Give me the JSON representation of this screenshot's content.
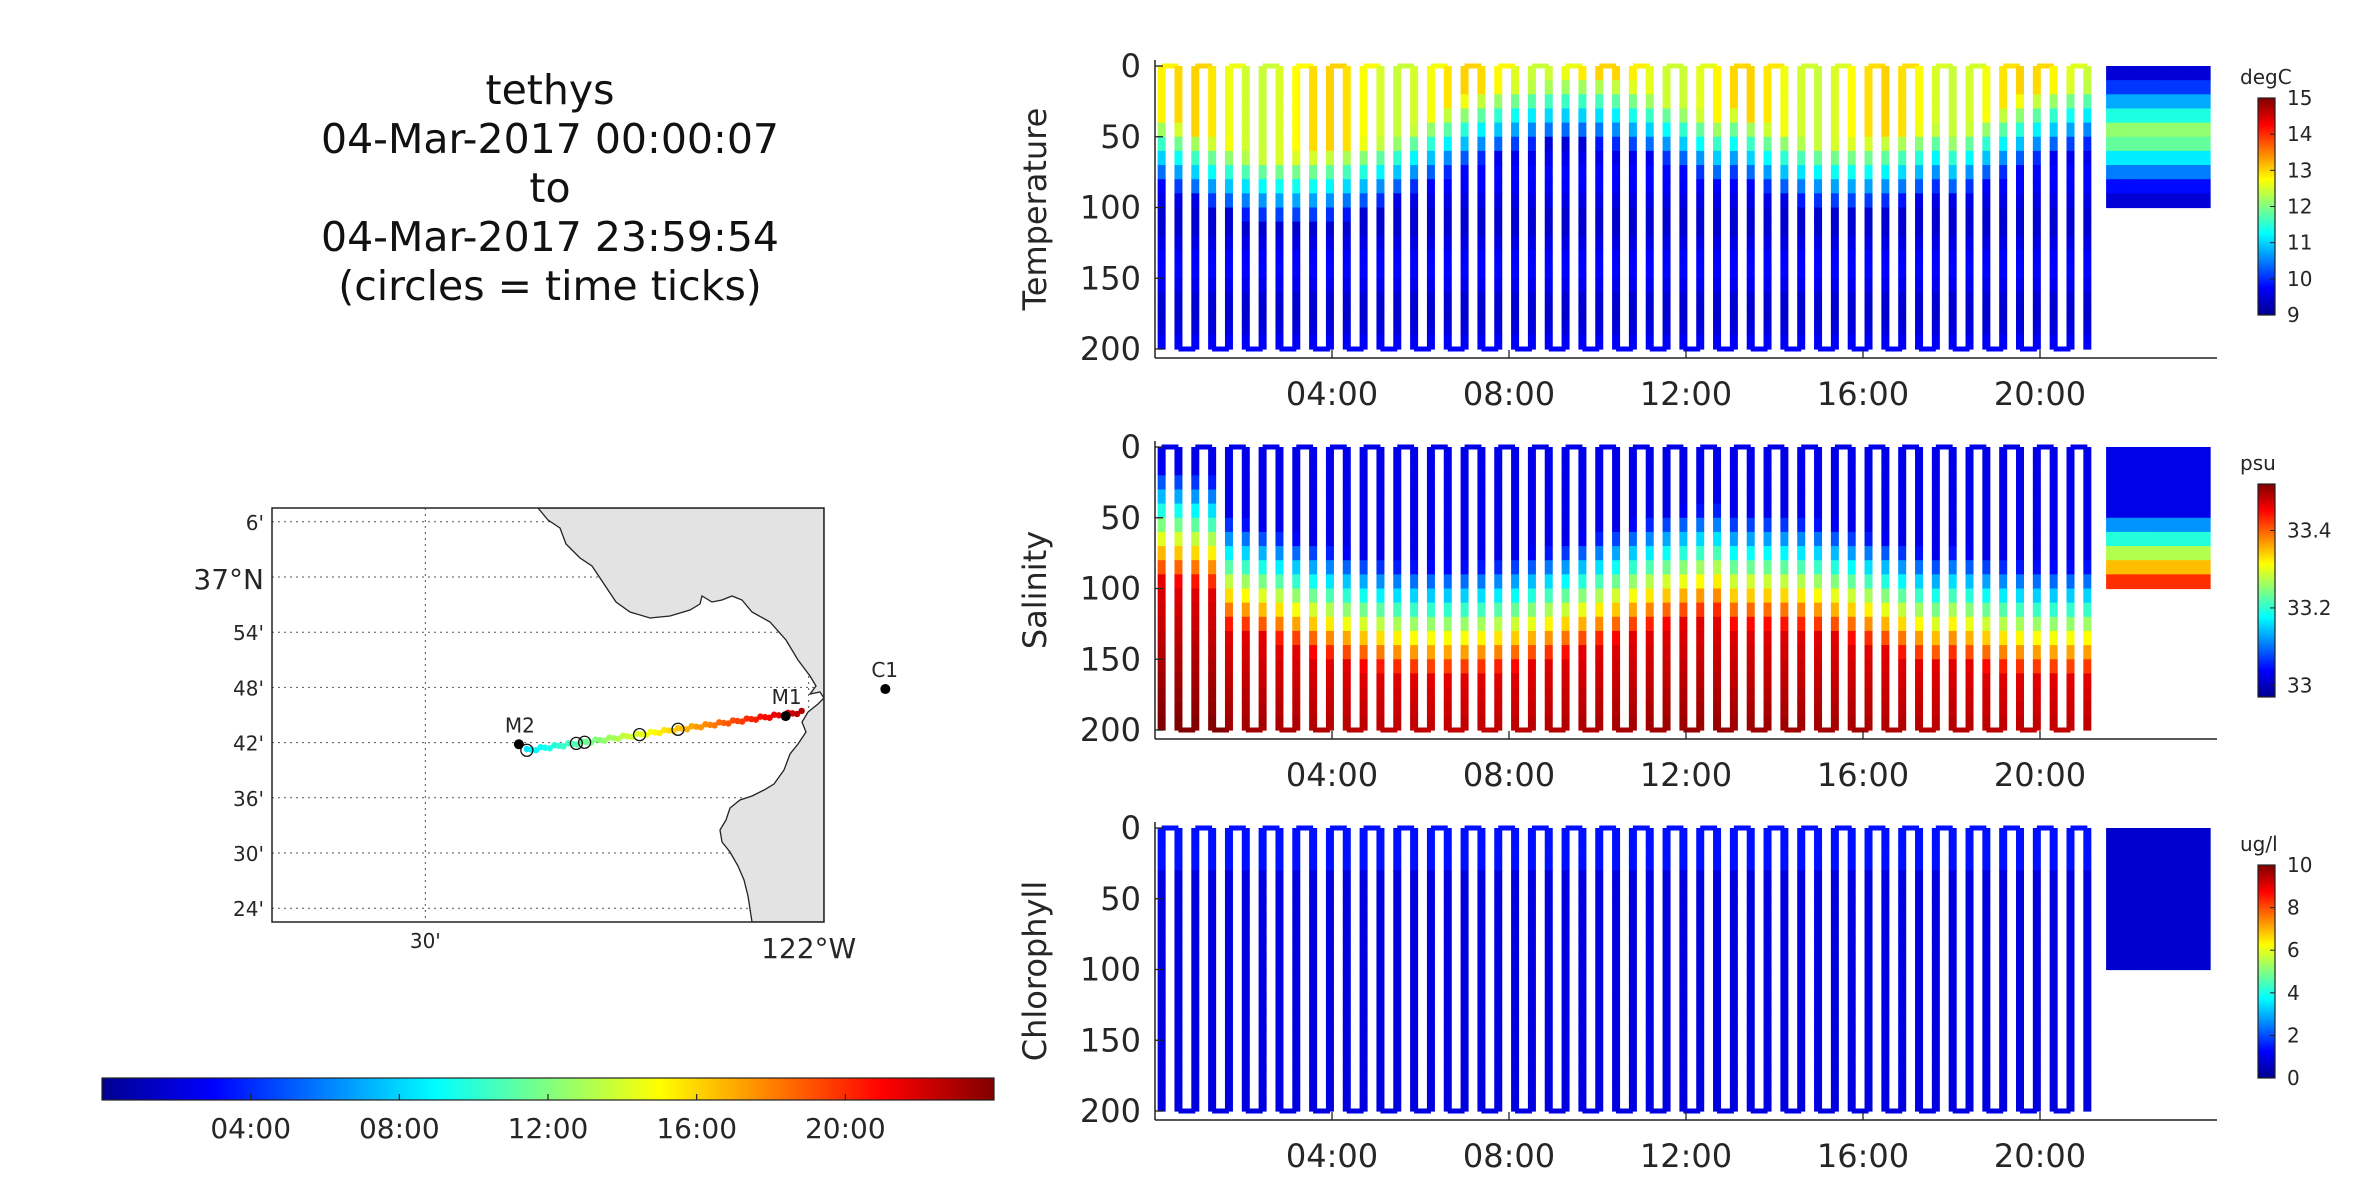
{
  "title": {
    "lines": [
      "tethys",
      "04-Mar-2017 00:00:07",
      "to",
      "04-Mar-2017 23:59:54",
      "(circles = time ticks)"
    ]
  },
  "map": {
    "lat_ticks": [
      "6'",
      "37°N",
      "54'",
      "48'",
      "42'",
      "36'",
      "30'",
      "24'"
    ],
    "lat_values": [
      37.1,
      37.0,
      36.9,
      36.8,
      36.7,
      36.6,
      36.5,
      36.4
    ],
    "lon_ticks": [
      "30'",
      "122°W"
    ],
    "lon_values": [
      -122.5,
      -122.0
    ],
    "lon_range": [
      -122.7,
      -121.98
    ],
    "lat_range": [
      36.375,
      37.125
    ],
    "stations": [
      {
        "name": "M2",
        "lon": -122.378,
        "lat": 36.697
      },
      {
        "name": "M1",
        "lon": -122.03,
        "lat": 36.748
      },
      {
        "name": "C1",
        "lon": -121.9,
        "lat": 36.797
      }
    ]
  },
  "time_colorbar": {
    "labels": [
      "04:00",
      "08:00",
      "12:00",
      "16:00",
      "20:00"
    ],
    "hours": [
      4,
      8,
      12,
      16,
      20
    ],
    "range_hours": [
      0,
      24
    ]
  },
  "chart_data": [
    {
      "type": "scatter",
      "ylabel": "Temperature",
      "colorbar_unit": "degC",
      "colorbar_ticks": [
        15,
        14,
        13,
        12,
        11,
        10,
        9
      ],
      "clim": [
        9,
        15
      ],
      "x_ticks": [
        "04:00",
        "08:00",
        "12:00",
        "16:00",
        "20:00"
      ],
      "x_hours": [
        4,
        8,
        12,
        16,
        20
      ],
      "y_ticks": [
        0,
        50,
        100,
        150,
        200
      ],
      "ylim": [
        0,
        200
      ],
      "y_reversed": true,
      "xlim_hours": [
        0,
        24
      ]
    },
    {
      "type": "scatter",
      "ylabel": "Salinity",
      "colorbar_unit": "psu",
      "colorbar_ticks": [
        33.4,
        33.2,
        33
      ],
      "clim": [
        32.97,
        33.52
      ],
      "x_ticks": [
        "04:00",
        "08:00",
        "12:00",
        "16:00",
        "20:00"
      ],
      "x_hours": [
        4,
        8,
        12,
        16,
        20
      ],
      "y_ticks": [
        0,
        50,
        100,
        150,
        200
      ],
      "ylim": [
        0,
        200
      ],
      "y_reversed": true,
      "xlim_hours": [
        0,
        24
      ]
    },
    {
      "type": "scatter",
      "ylabel": "Chlorophyll",
      "colorbar_unit": "ug/l",
      "colorbar_ticks": [
        10,
        8,
        6,
        4,
        2,
        0
      ],
      "clim": [
        0,
        10
      ],
      "x_ticks": [
        "04:00",
        "08:00",
        "12:00",
        "16:00",
        "20:00"
      ],
      "x_hours": [
        4,
        8,
        12,
        16,
        20
      ],
      "y_ticks": [
        0,
        50,
        100,
        150,
        200
      ],
      "ylim": [
        0,
        200
      ],
      "y_reversed": true,
      "xlim_hours": [
        0,
        24
      ]
    }
  ],
  "colors": {
    "jet": [
      "#00008f",
      "#0000ff",
      "#0080ff",
      "#00ffff",
      "#80ff80",
      "#ffff00",
      "#ff8000",
      "#ff0000",
      "#800000"
    ]
  }
}
